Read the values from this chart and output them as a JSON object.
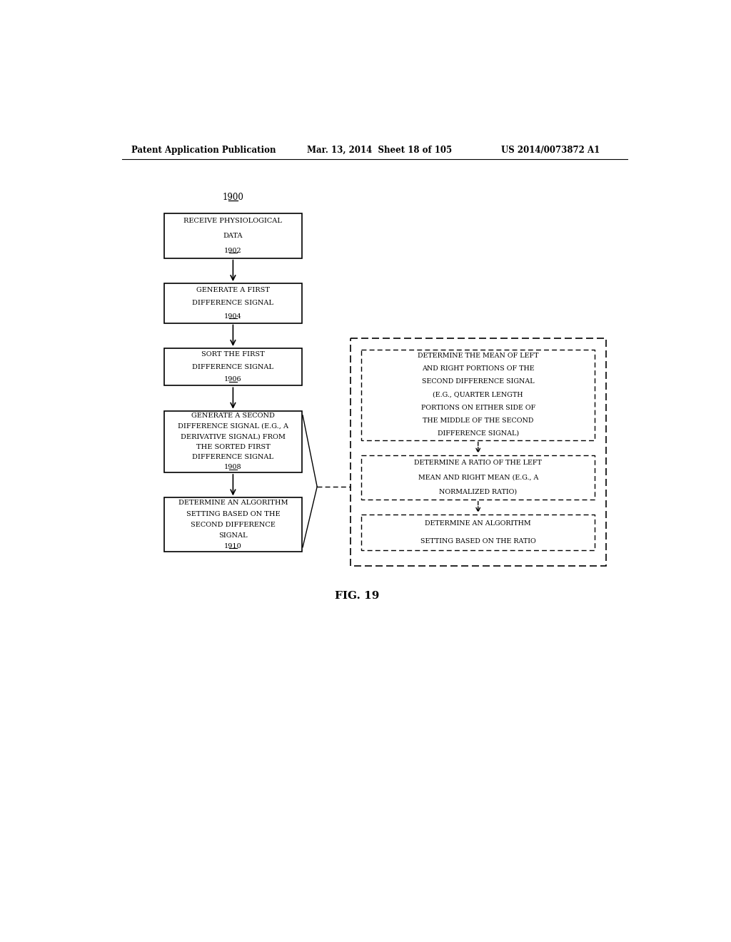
{
  "header_left": "Patent Application Publication",
  "header_mid": "Mar. 13, 2014  Sheet 18 of 105",
  "header_right": "US 2014/0073872 A1",
  "fig_label": "FIG. 19",
  "diagram_label": "1900",
  "bg_color": "#ffffff",
  "text_color": "#000000",
  "font_size_header": 8.5,
  "font_size_box": 7.0,
  "font_size_fig": 11,
  "font_size_label": 8.5
}
